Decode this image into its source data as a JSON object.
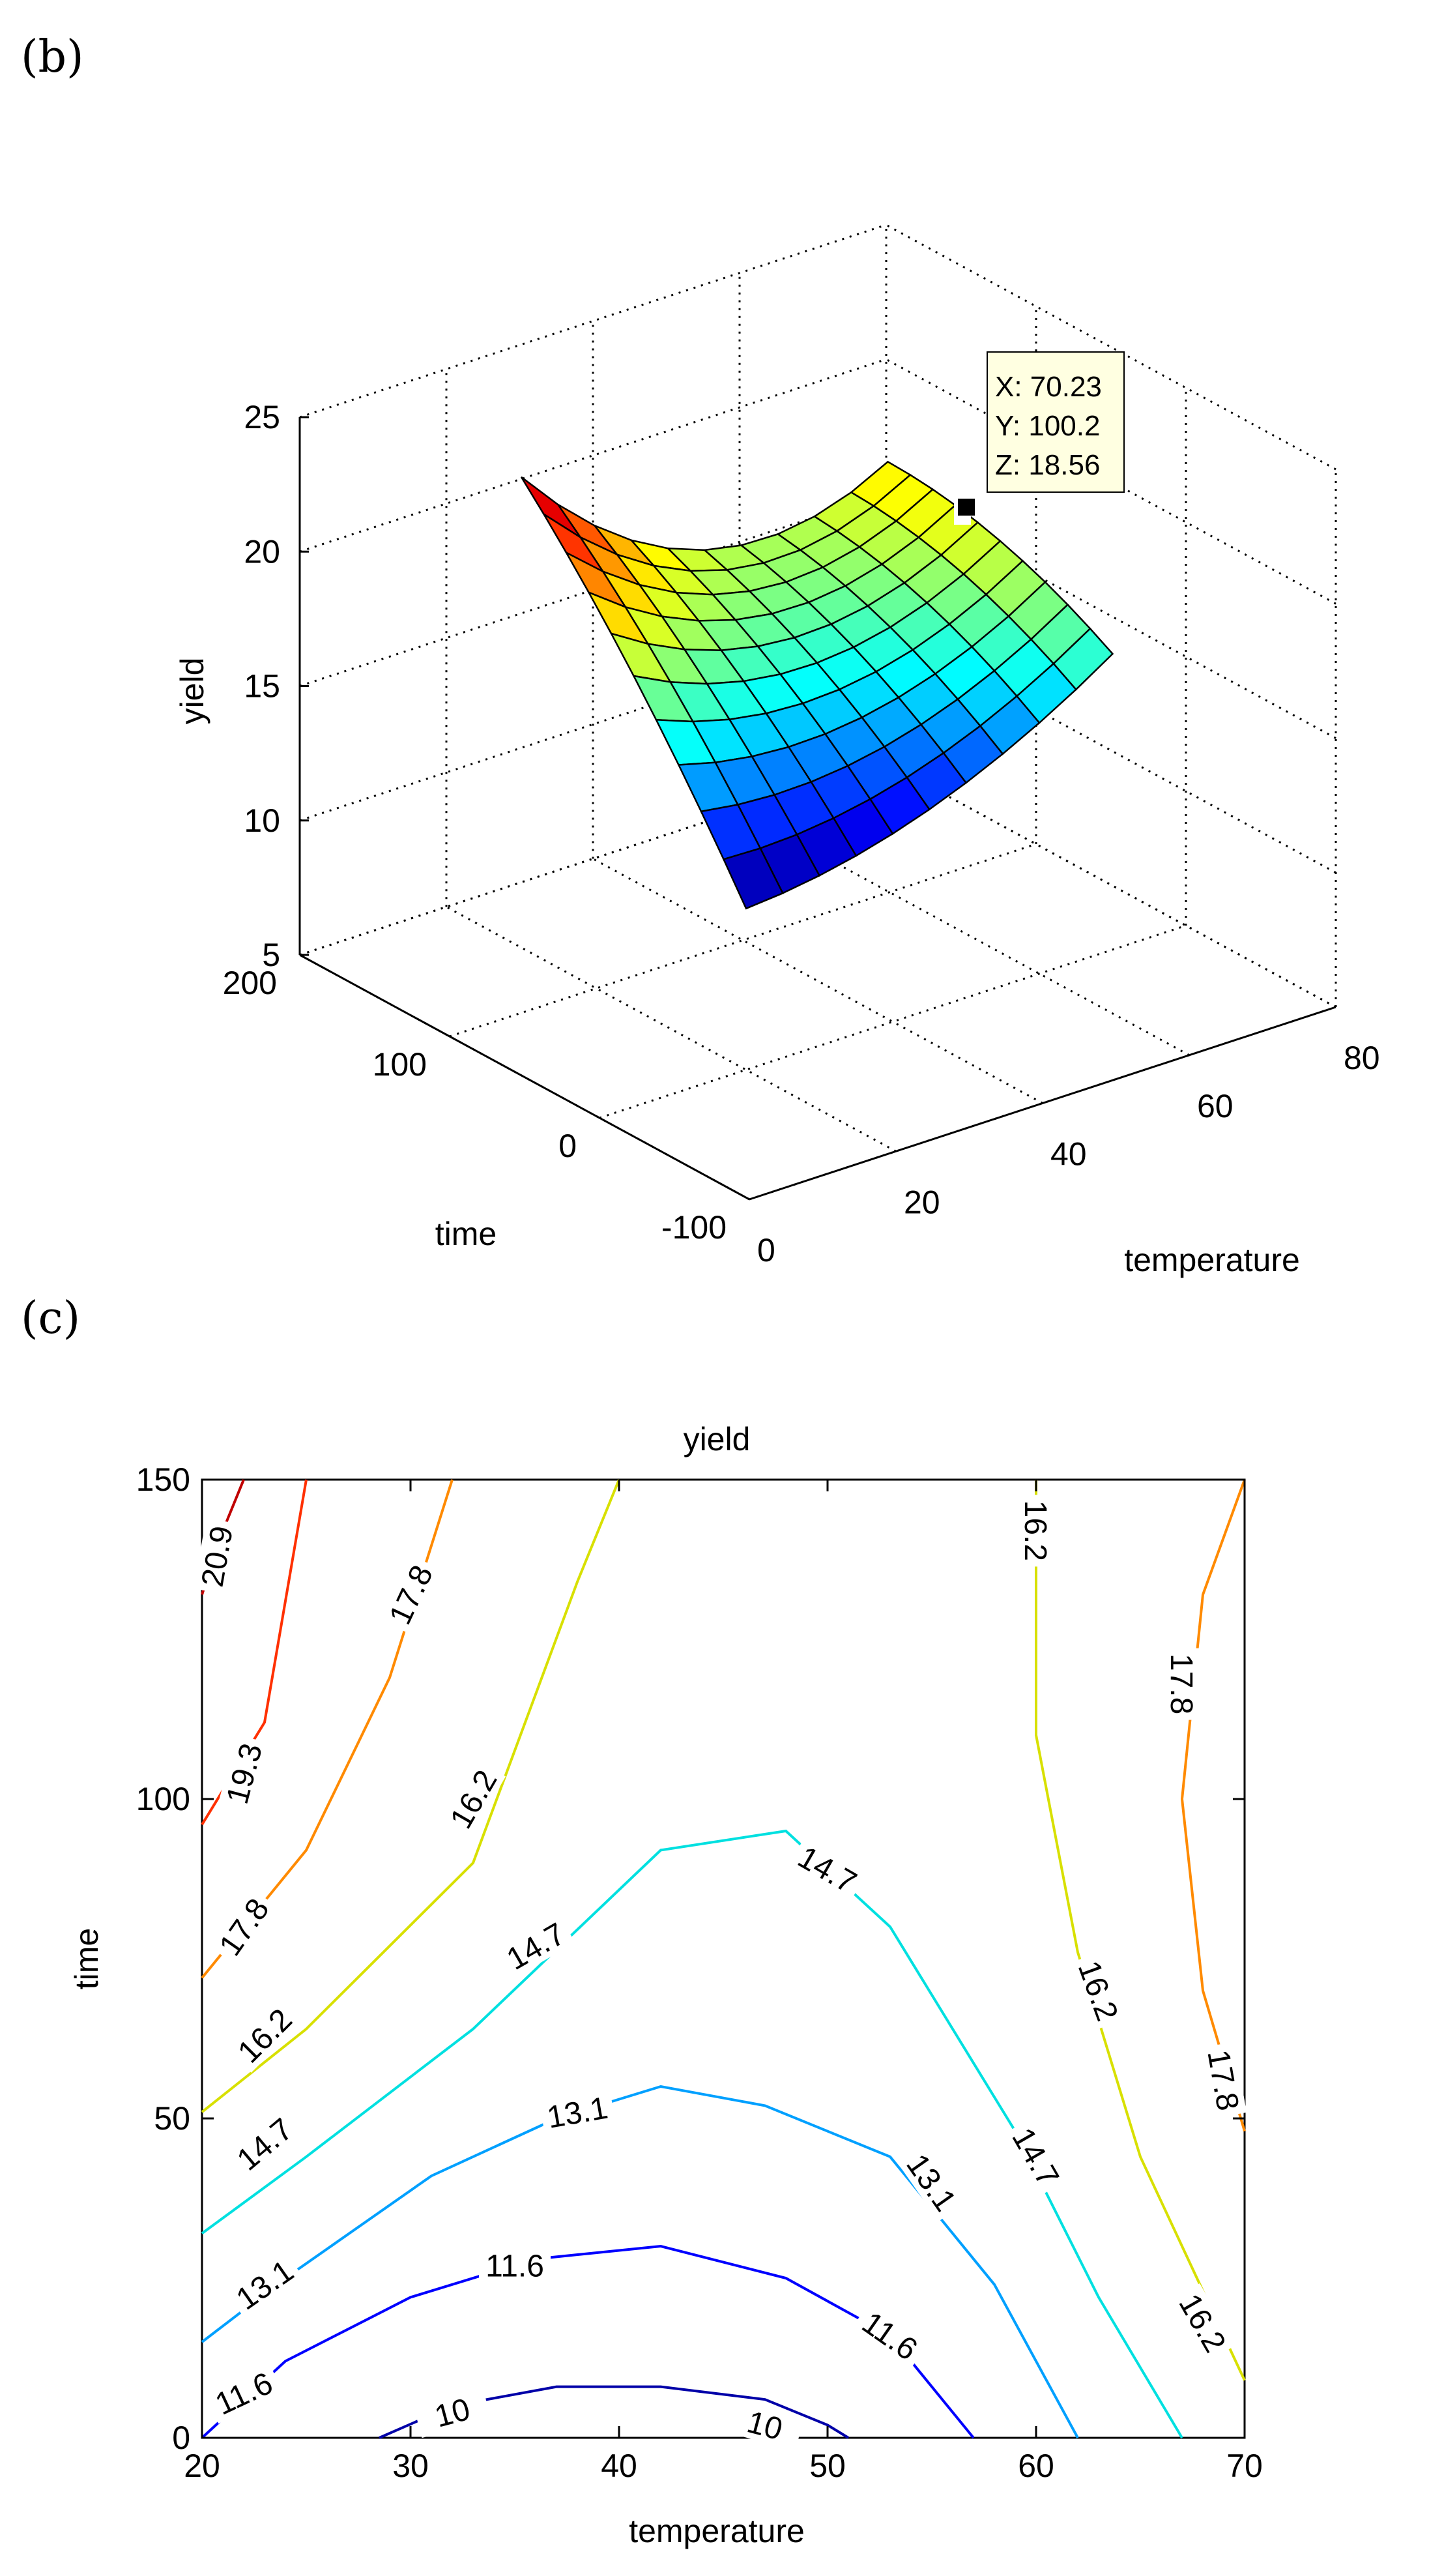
{
  "panels": {
    "b": "(b)",
    "c": "(c)"
  },
  "chart_data": [
    {
      "type": "surface",
      "panel": "(b)",
      "xlabel": "temperature",
      "ylabel": "time",
      "zlabel": "yield",
      "xlim": [
        0,
        80
      ],
      "ylim": [
        -100,
        200
      ],
      "zlim": [
        5,
        25
      ],
      "xticks": [
        "0",
        "20",
        "40",
        "60",
        "80"
      ],
      "yticks": [
        "-100",
        "0",
        "100",
        "200"
      ],
      "zticks": [
        "5",
        "10",
        "15",
        "20",
        "25"
      ],
      "grid": true,
      "colormap": "jet",
      "surface_range": {
        "x": [
          20,
          70
        ],
        "y": [
          0,
          150
        ]
      },
      "mesh_lines": 10,
      "corner_values": {
        "x20_y0": 11.0,
        "x70_y0": 16.0,
        "x20_y150": 22.5,
        "x70_y150": 18.6
      },
      "datatip": {
        "x_text": "X: 70.23",
        "y_text": "Y: 100.2",
        "z_text": "Z: 18.56",
        "x": 70.23,
        "y": 100.2,
        "z": 18.56
      }
    },
    {
      "type": "contour",
      "panel": "(c)",
      "title": "yield",
      "xlabel": "temperature",
      "ylabel": "time",
      "xlim": [
        20,
        70
      ],
      "ylim": [
        0,
        150
      ],
      "xticks": [
        "20",
        "30",
        "40",
        "50",
        "60",
        "70"
      ],
      "yticks": [
        "0",
        "50",
        "100",
        "150"
      ],
      "levels": [
        {
          "value": "10",
          "color": "#0000a8",
          "label": "10",
          "segments": [
            [
              [
                28.5,
                0
              ],
              [
                32,
                5
              ],
              [
                37,
                8
              ],
              [
                42,
                8
              ],
              [
                47,
                6
              ],
              [
                50,
                2
              ],
              [
                51,
                0
              ]
            ]
          ],
          "labels": [
            [
              32,
              4,
              15
            ],
            [
              47,
              2,
              -15
            ]
          ]
        },
        {
          "value": "11.6",
          "color": "#0000ff",
          "label": "11.6",
          "segments": [
            [
              [
                20,
                0
              ],
              [
                24,
                12
              ],
              [
                30,
                22
              ],
              [
                36,
                28
              ],
              [
                42,
                30
              ],
              [
                48,
                25
              ],
              [
                53,
                16
              ],
              [
                57,
                0
              ]
            ]
          ],
          "labels": [
            [
              22,
              7,
              25
            ],
            [
              35,
              27,
              0
            ],
            [
              53,
              16,
              -35
            ]
          ]
        },
        {
          "value": "13.1",
          "color": "#00a0ff",
          "label": "13.1",
          "segments": [
            [
              [
                20,
                15
              ],
              [
                24,
                25
              ],
              [
                31,
                41
              ],
              [
                37,
                50
              ],
              [
                42,
                55
              ],
              [
                47,
                52
              ],
              [
                53,
                44
              ],
              [
                58,
                24
              ],
              [
                62,
                0
              ]
            ]
          ],
          "labels": [
            [
              23,
              24,
              35
            ],
            [
              38,
              51,
              10
            ],
            [
              55,
              40,
              -55
            ]
          ]
        },
        {
          "value": "14.7",
          "color": "#00e0e0",
          "label": "14.7",
          "segments": [
            [
              [
                20,
                32
              ],
              [
                25,
                44
              ],
              [
                33,
                64
              ],
              [
                42,
                92
              ],
              [
                48,
                95
              ],
              [
                53,
                80
              ],
              [
                59,
                48
              ],
              [
                63,
                22
              ],
              [
                67,
                0
              ]
            ]
          ],
          "labels": [
            [
              23,
              46,
              40
            ],
            [
              36,
              77,
              30
            ],
            [
              50,
              89,
              -30
            ],
            [
              60,
              44,
              -60
            ]
          ]
        },
        {
          "value": "16.2",
          "color": "#d8e000",
          "label": "16.2",
          "segments": [
            [
              [
                20,
                51
              ],
              [
                25,
                64
              ],
              [
                33,
                90
              ],
              [
                38,
                134
              ],
              [
                40,
                150
              ]
            ],
            [
              [
                60,
                150
              ],
              [
                60,
                110
              ],
              [
                62,
                76
              ],
              [
                65,
                44
              ],
              [
                70,
                9
              ]
            ]
          ],
          "labels": [
            [
              23,
              63,
              45
            ],
            [
              33,
              100,
              60
            ],
            [
              60,
              142,
              -90
            ],
            [
              63,
              70,
              -70
            ],
            [
              68,
              18,
              -60
            ]
          ]
        },
        {
          "value": "17.8",
          "color": "#ff8a00",
          "label": "17.8",
          "segments": [
            [
              [
                20,
                72
              ],
              [
                25,
                92
              ],
              [
                29,
                119
              ],
              [
                32,
                150
              ]
            ],
            [
              [
                70,
                150
              ],
              [
                68,
                132
              ],
              [
                67,
                100
              ],
              [
                68,
                70
              ],
              [
                70,
                48
              ]
            ]
          ],
          "labels": [
            [
              22,
              80,
              55
            ],
            [
              30,
              132,
              65
            ],
            [
              67,
              118,
              -90
            ],
            [
              69,
              56,
              -80
            ]
          ]
        },
        {
          "value": "19.3",
          "color": "#ff3000",
          "label": "19.3",
          "segments": [
            [
              [
                20,
                96
              ],
              [
                23,
                112
              ],
              [
                25,
                150
              ]
            ]
          ],
          "labels": [
            [
              22,
              104,
              75
            ]
          ]
        },
        {
          "value": "20.9",
          "color": "#c00000",
          "label": "20.9",
          "segments": [
            [
              [
                20,
                132
              ],
              [
                21,
                142
              ],
              [
                22,
                150
              ]
            ]
          ],
          "labels": [
            [
              20.7,
              138,
              80
            ]
          ]
        }
      ]
    }
  ]
}
